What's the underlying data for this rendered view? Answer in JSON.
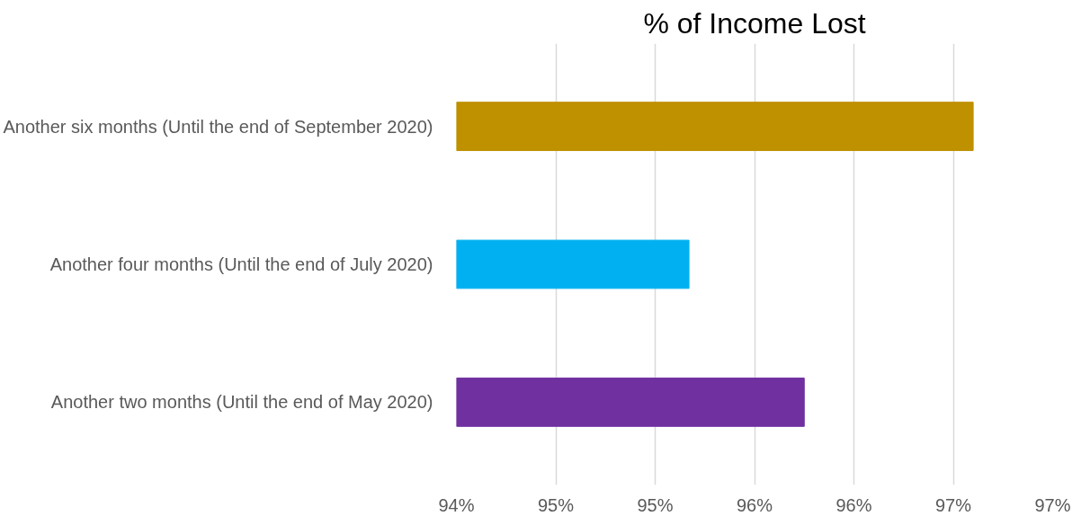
{
  "chart_data": {
    "type": "bar",
    "orientation": "horizontal",
    "title": "% of Income Lost",
    "categories": [
      "Another six months (Until the end of September 2020)",
      "Another four months (Until the end of July 2020)",
      "Another two months (Until the end of May 2020)"
    ],
    "values": [
      96.6,
      95.17,
      95.75
    ],
    "colors": [
      "#bf9000",
      "#00b0f0",
      "#7030a0"
    ],
    "xlim": [
      94,
      97
    ],
    "xticks": [
      {
        "value": 94,
        "label": "94%"
      },
      {
        "value": 94.5,
        "label": "95%"
      },
      {
        "value": 95,
        "label": "95%"
      },
      {
        "value": 95.5,
        "label": "96%"
      },
      {
        "value": 96,
        "label": "96%"
      },
      {
        "value": 96.5,
        "label": "97%"
      },
      {
        "value": 97,
        "label": "97%"
      }
    ],
    "grid": "x"
  }
}
